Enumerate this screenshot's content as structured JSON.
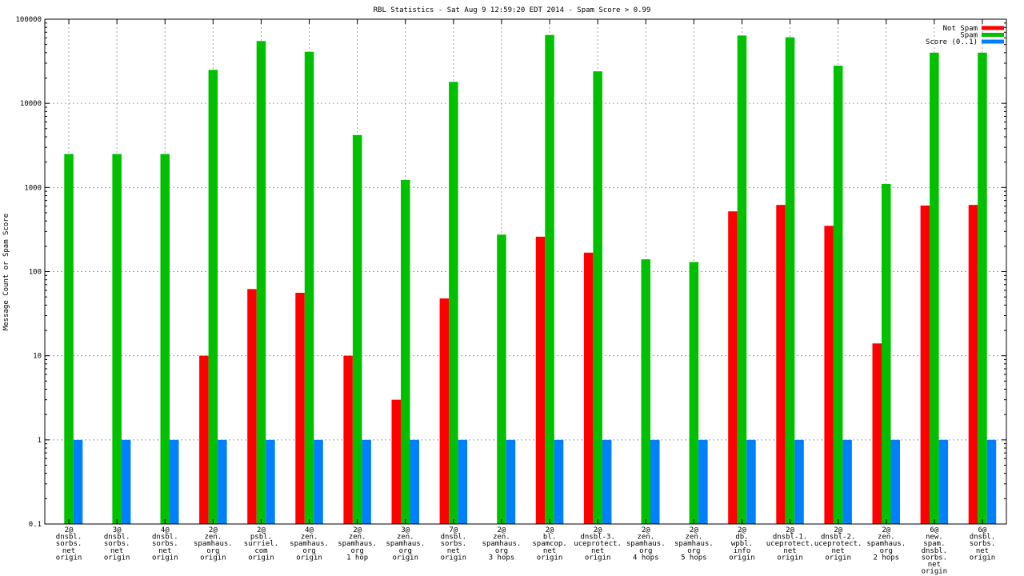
{
  "chart_data": {
    "type": "bar",
    "title": "RBL Statistics - Sat Aug  9 12:59:20 EDT 2014 - Spam Score > 0.99",
    "xlabel": "",
    "ylabel": "Message Count or Spam Score",
    "yscale": "log",
    "ylim": [
      0.1,
      100000
    ],
    "yticks": [
      "0.1",
      "1",
      "10",
      "100",
      "1000",
      "10000",
      "100000"
    ],
    "grid": true,
    "legend_position": "top-right",
    "categories": [
      [
        "2@",
        "dnsbl.",
        "sorbs.",
        "net",
        "origin"
      ],
      [
        "3@",
        "dnsbl.",
        "sorbs.",
        "net",
        "origin"
      ],
      [
        "4@",
        "dnsbl.",
        "sorbs.",
        "net",
        "origin"
      ],
      [
        "2@",
        "zen.",
        "spamhaus.",
        "org",
        "origin"
      ],
      [
        "2@",
        "psbl.",
        "surriel.",
        "com",
        "origin"
      ],
      [
        "4@",
        "zen.",
        "spamhaus.",
        "org",
        "origin"
      ],
      [
        "2@",
        "zen.",
        "spamhaus.",
        "org",
        "1 hop"
      ],
      [
        "3@",
        "zen.",
        "spamhaus.",
        "org",
        "origin"
      ],
      [
        "7@",
        "dnsbl.",
        "sorbs.",
        "net",
        "origin"
      ],
      [
        "2@",
        "zen.",
        "spamhaus.",
        "org",
        "3 hops"
      ],
      [
        "2@",
        "bl.",
        "spamcop.",
        "net",
        "origin"
      ],
      [
        "2@",
        "dnsbl-3.",
        "uceprotect.",
        "net",
        "origin"
      ],
      [
        "2@",
        "zen.",
        "spamhaus.",
        "org",
        "4 hops"
      ],
      [
        "2@",
        "zen.",
        "spamhaus.",
        "org",
        "5 hops"
      ],
      [
        "2@",
        "db.",
        "wpbl.",
        "info",
        "origin"
      ],
      [
        "2@",
        "dnsbl-1.",
        "uceprotect.",
        "net",
        "origin"
      ],
      [
        "2@",
        "dnsbl-2.",
        "uceprotect.",
        "net",
        "origin"
      ],
      [
        "2@",
        "zen.",
        "spamhaus.",
        "org",
        "2 hops"
      ],
      [
        "6@",
        "new.",
        "spam.",
        "dnsbl.",
        "sorbs.",
        "net",
        "origin"
      ],
      [
        "6@",
        "dnsbl.",
        "sorbs.",
        "net",
        "origin"
      ]
    ],
    "series": [
      {
        "name": "Not Spam",
        "color": "#ff0000",
        "values": [
          null,
          null,
          null,
          10,
          62,
          56,
          10,
          3,
          48,
          null,
          260,
          168,
          null,
          null,
          520,
          620,
          350,
          14,
          610,
          620
        ]
      },
      {
        "name": "Spam",
        "color": "#00c000",
        "values": [
          2500,
          2500,
          2500,
          25000,
          55000,
          41000,
          4200,
          1230,
          18000,
          275,
          65000,
          24000,
          140,
          130,
          64000,
          61000,
          28000,
          1100,
          40000,
          40000
        ]
      },
      {
        "name": "Score (0..1)",
        "color": "#0080ff",
        "values": [
          1,
          1,
          1,
          1,
          1,
          1,
          1,
          1,
          1,
          1,
          1,
          1,
          1,
          1,
          1,
          1,
          1,
          1,
          1,
          1
        ]
      }
    ]
  }
}
